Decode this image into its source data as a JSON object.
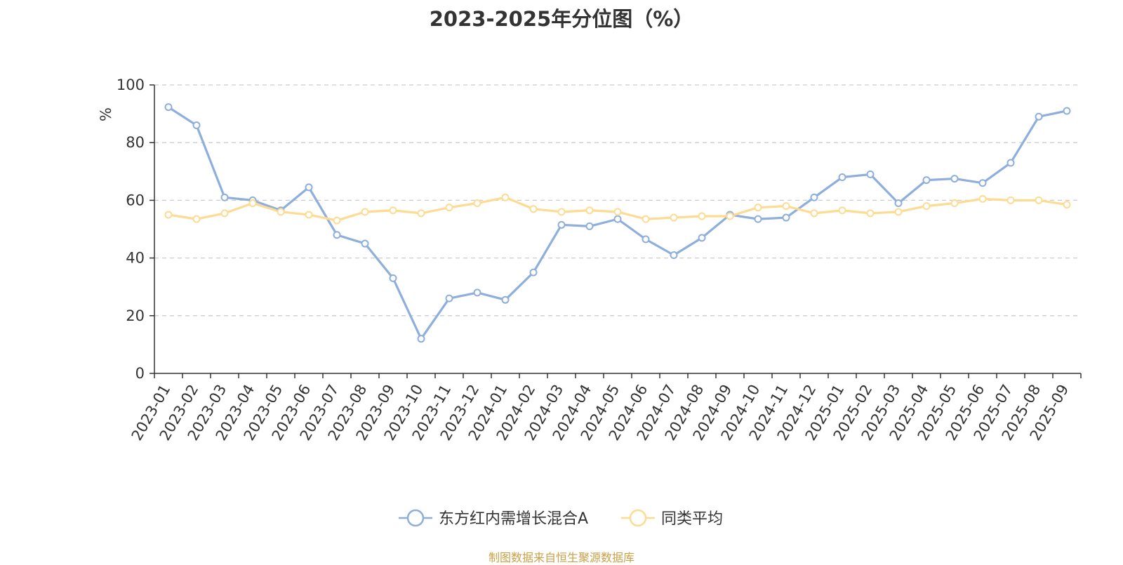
{
  "chart_data": {
    "type": "line",
    "title": "2023-2025年分位图（%）",
    "ylabel": "%",
    "xlabel": "",
    "ylim": [
      0,
      100
    ],
    "yticks": [
      0,
      20,
      40,
      60,
      80,
      100
    ],
    "grid": true,
    "legend_position": "bottom",
    "categories": [
      "2023-01",
      "2023-02",
      "2023-03",
      "2023-04",
      "2023-05",
      "2023-06",
      "2023-07",
      "2023-08",
      "2023-09",
      "2023-10",
      "2023-11",
      "2023-12",
      "2024-01",
      "2024-02",
      "2024-03",
      "2024-04",
      "2024-05",
      "2024-06",
      "2024-07",
      "2024-08",
      "2024-09",
      "2024-10",
      "2024-11",
      "2024-12",
      "2025-01",
      "2025-02",
      "2025-03",
      "2025-04",
      "2025-05",
      "2025-06",
      "2025-07",
      "2025-08",
      "2025-09"
    ],
    "series": [
      {
        "name": "东方红内需增长混合A",
        "color": "#8eaedb",
        "values": [
          92.3,
          86,
          61,
          60,
          56.5,
          64.5,
          48,
          45,
          33,
          12,
          26,
          28,
          25.5,
          35,
          51.5,
          51,
          53.5,
          46.5,
          41,
          47,
          55,
          53.5,
          54,
          61,
          68,
          69,
          59,
          67,
          67.5,
          66,
          73,
          89,
          91
        ]
      },
      {
        "name": "同类平均",
        "color": "#fddb93",
        "values": [
          55,
          53.5,
          55.5,
          59,
          56,
          55,
          53,
          56,
          56.5,
          55.5,
          57.5,
          59,
          61,
          57,
          56,
          56.5,
          56,
          53.5,
          54,
          54.5,
          54.5,
          57.5,
          58,
          55.5,
          56.5,
          55.5,
          56,
          58,
          59,
          60.5,
          60,
          60,
          58.5
        ]
      }
    ]
  },
  "source": "制图数据来自恒生聚源数据库"
}
